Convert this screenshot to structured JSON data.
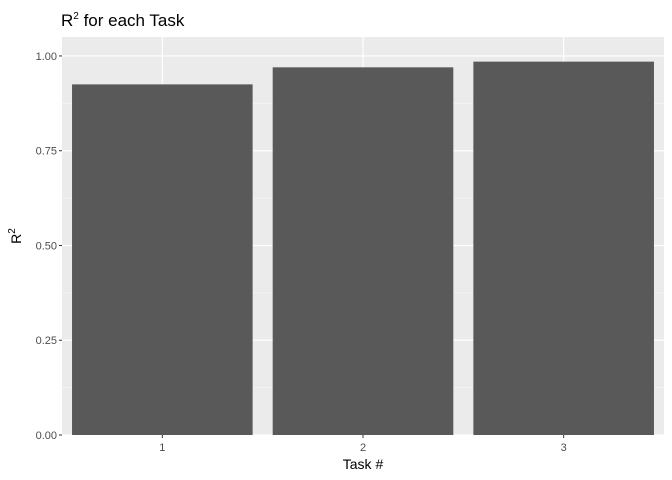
{
  "chart_data": {
    "type": "bar",
    "title": "R",
    "title_superscript": "2",
    "title_rest": " for each Task",
    "xlabel": "Task #",
    "ylabel": "R",
    "ylabel_superscript": "2",
    "categories": [
      "1",
      "2",
      "3"
    ],
    "values": [
      0.925,
      0.97,
      0.985
    ],
    "ylim": [
      0,
      1.05
    ],
    "yticks": [
      0,
      0.25,
      0.5,
      0.75,
      1.0
    ],
    "ytick_labels": [
      "0.00",
      "0.25",
      "0.50",
      "0.75",
      "1.00"
    ],
    "grid": true,
    "legend": "none",
    "colors": {
      "bar": "#595959",
      "panel": "#ebebeb",
      "grid_major": "#ffffff",
      "grid_minor": "#f5f5f5",
      "tick": "#333333",
      "tick_label": "#4d4d4d"
    }
  }
}
